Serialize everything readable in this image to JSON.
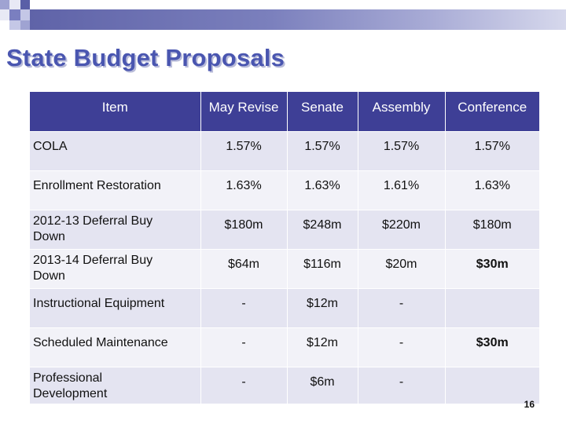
{
  "slide": {
    "title": "State Budget Proposals",
    "slide_number": "16",
    "accent_color": "#3e3f96",
    "title_color": "#4a56b0"
  },
  "table": {
    "headers": [
      "Item",
      "May Revise",
      "Senate",
      "Assembly",
      "Conference"
    ],
    "rows": [
      {
        "item": "COLA",
        "may_revise": "1.57%",
        "senate": "1.57%",
        "assembly": "1.57%",
        "conference": "1.57%"
      },
      {
        "item": "Enrollment Restoration",
        "may_revise": "1.63%",
        "senate": "1.63%",
        "assembly": "1.61%",
        "conference": "1.63%"
      },
      {
        "item": "2012-13 Deferral Buy Down",
        "may_revise": "$180m",
        "senate": "$248m",
        "assembly": "$220m",
        "conference": "$180m"
      },
      {
        "item": "2013-14 Deferral Buy Down",
        "may_revise": "$64m",
        "senate": "$116m",
        "assembly": "$20m",
        "conference": "$30m"
      },
      {
        "item": "Instructional Equipment",
        "may_revise": "-",
        "senate": "$12m",
        "assembly": "-",
        "conference": ""
      },
      {
        "item": "Scheduled Maintenance",
        "may_revise": "-",
        "senate": "$12m",
        "assembly": "-",
        "conference": "$30m"
      },
      {
        "item": "Professional Development",
        "may_revise": "-",
        "senate": "$6m",
        "assembly": "-",
        "conference": ""
      }
    ]
  }
}
